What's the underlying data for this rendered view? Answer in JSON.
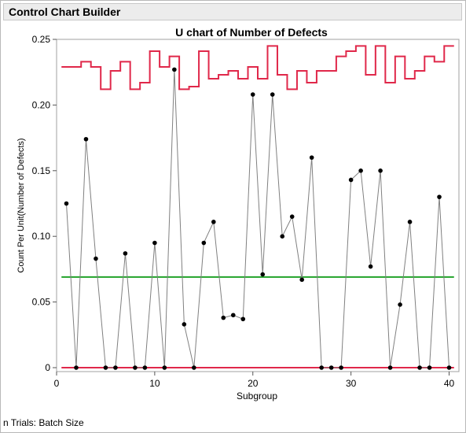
{
  "app": {
    "title": "Control Chart Builder"
  },
  "footer": {
    "note": "n Trials: Batch Size"
  },
  "chart_data": {
    "type": "line",
    "title": "U chart of Number of Defects",
    "xlabel": "Subgroup",
    "ylabel": "Count Per Unit(Number of Defects)",
    "xlim": [
      0,
      41
    ],
    "ylim": [
      -0.003,
      0.25
    ],
    "xticks": [
      0,
      10,
      20,
      30,
      40
    ],
    "yticks": [
      0,
      0.05,
      0.1,
      0.15,
      0.2,
      0.25
    ],
    "ytick_labels": [
      "0",
      "0.05",
      "0.10",
      "0.15",
      "0.20",
      "0.25"
    ],
    "grid": false,
    "colors": {
      "points": "#000000",
      "connector": "#808080",
      "center_line": "#22a32a",
      "limits": "#e0284a"
    },
    "center_line": 0.069,
    "lcl": 0,
    "x": [
      1,
      2,
      3,
      4,
      5,
      6,
      7,
      8,
      9,
      10,
      11,
      12,
      13,
      14,
      15,
      16,
      17,
      18,
      19,
      20,
      21,
      22,
      23,
      24,
      25,
      26,
      27,
      28,
      29,
      30,
      31,
      32,
      33,
      34,
      35,
      36,
      37,
      38,
      39,
      40
    ],
    "series": [
      {
        "values": [
          0.125,
          0,
          0.174,
          0.083,
          0,
          0,
          0.087,
          0,
          0,
          0.095,
          0,
          0.227,
          0.033,
          0,
          0.095,
          0.111,
          0.038,
          0.04,
          0.037,
          0.208,
          0.071,
          0.208,
          0.1,
          0.115,
          0.067,
          0.16,
          0,
          0,
          0,
          0.143,
          0.15,
          0.077,
          0.15,
          0,
          0.048,
          0.111,
          0,
          0,
          0.13,
          0
        ]
      }
    ],
    "ucl": [
      0.229,
      0.229,
      0.233,
      0.229,
      0.212,
      0.226,
      0.233,
      0.212,
      0.217,
      0.241,
      0.229,
      0.237,
      0.212,
      0.214,
      0.241,
      0.22,
      0.223,
      0.226,
      0.22,
      0.229,
      0.22,
      0.245,
      0.223,
      0.212,
      0.226,
      0.217,
      0.226,
      0.226,
      0.237,
      0.241,
      0.245,
      0.223,
      0.245,
      0.217,
      0.237,
      0.22,
      0.226,
      0.237,
      0.233,
      0.245
    ]
  }
}
